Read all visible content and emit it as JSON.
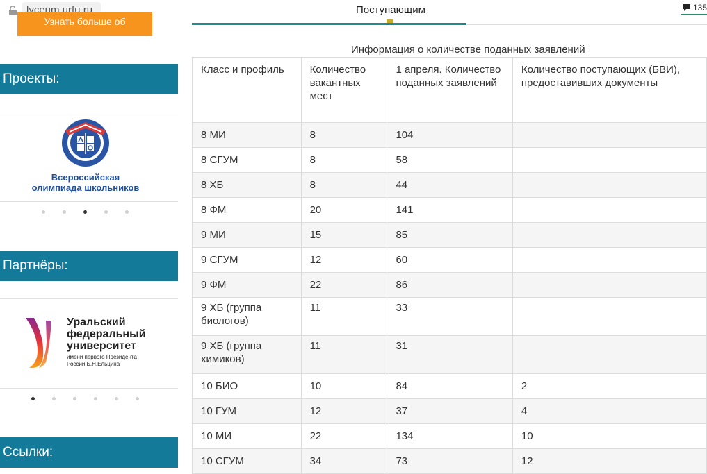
{
  "browser": {
    "url": "lyceum.urfu.ru",
    "title": "Поступающим",
    "comment_count": "135"
  },
  "sidebar": {
    "orange_button_label": "Узнать больше об изменениях",
    "projects_heading": "Проекты:",
    "olympiad_logo_text_line1": "Всероссийская",
    "olympiad_logo_text_line2": "олимпиада школьников",
    "olympiad_logo_ring_text": "ВСЕРОССИЙСКАЯ ОЛИМПИАДА ШКОЛЬНИКОВ",
    "partners_heading": "Партнёры:",
    "urfu_logo_line1": "Уральский",
    "urfu_logo_line2": "федеральный",
    "urfu_logo_line3": "университет",
    "urfu_logo_line4": "имени первого Президента",
    "urfu_logo_line5": "России Б.Н.Ельцина",
    "links_heading": "Ссылки:",
    "projects_carousel_active": 3,
    "partners_carousel_active": 1
  },
  "table": {
    "caption": "Информация о количестве поданных заявлений",
    "headers": [
      "Класс и профиль",
      "Количество вакантных мест",
      "1 апреля. Количество поданных заявлений",
      "Количество поступающих (БВИ), предоставивших документы"
    ],
    "rows": [
      [
        "8 МИ",
        "8",
        "104",
        ""
      ],
      [
        "8 СГУМ",
        "8",
        "58",
        ""
      ],
      [
        "8 ХБ",
        "8",
        "44",
        ""
      ],
      [
        "8 ФМ",
        "20",
        "141",
        ""
      ],
      [
        "9 МИ",
        "15",
        "85",
        ""
      ],
      [
        "9 СГУМ",
        "12",
        "60",
        ""
      ],
      [
        "9 ФМ",
        "22",
        "86",
        ""
      ],
      [
        "9 ХБ (группа биологов)",
        "11",
        "33",
        ""
      ],
      [
        "9 ХБ (группа химиков)",
        "11",
        "31",
        ""
      ],
      [
        "10 БИО",
        "10",
        "84",
        "2"
      ],
      [
        "10 ГУМ",
        "12",
        "37",
        "4"
      ],
      [
        "10 МИ",
        "22",
        "134",
        "10"
      ],
      [
        "10 СГУМ",
        "34",
        "73",
        "12"
      ]
    ]
  },
  "colors": {
    "sidebar_band": "#137b99",
    "orange_button": "#f7941d",
    "teal_accent": "#1c8c8e"
  }
}
